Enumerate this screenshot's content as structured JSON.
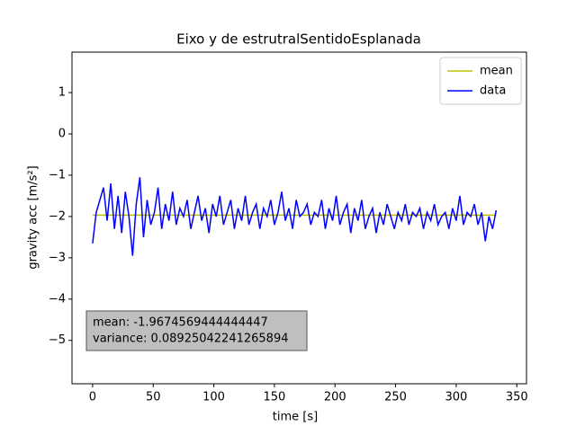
{
  "chart_data": {
    "type": "line",
    "title": "Eixo y de estrutralSentidoEsplanada",
    "x_label": "time [s]",
    "y_label": "gravity acc [m/s²]",
    "x": [
      0,
      3,
      6,
      9,
      12,
      15,
      18,
      21,
      24,
      27,
      30,
      33,
      36,
      39,
      42,
      45,
      48,
      51,
      54,
      57,
      60,
      63,
      66,
      69,
      72,
      75,
      78,
      81,
      84,
      87,
      90,
      93,
      96,
      99,
      102,
      105,
      108,
      111,
      114,
      117,
      120,
      123,
      126,
      129,
      132,
      135,
      138,
      141,
      144,
      147,
      150,
      153,
      156,
      159,
      162,
      165,
      168,
      171,
      174,
      177,
      180,
      183,
      186,
      189,
      192,
      195,
      198,
      201,
      204,
      207,
      210,
      213,
      216,
      219,
      222,
      225,
      228,
      231,
      234,
      237,
      240,
      243,
      246,
      249,
      252,
      255,
      258,
      261,
      264,
      267,
      270,
      273,
      276,
      279,
      282,
      285,
      288,
      291,
      294,
      297,
      300,
      303,
      306,
      309,
      312,
      315,
      318,
      321,
      324,
      327,
      330,
      333
    ],
    "series": [
      {
        "name": "mean",
        "color": "#bfbf00",
        "x": [
          0,
          333
        ],
        "values": [
          -1.9674569444444447,
          -1.9674569444444447
        ]
      },
      {
        "name": "data",
        "color": "#0000ff",
        "values": [
          -2.65,
          -1.9,
          -1.6,
          -1.3,
          -2.1,
          -1.2,
          -2.3,
          -1.5,
          -2.4,
          -1.4,
          -2.0,
          -2.95,
          -1.7,
          -1.05,
          -2.5,
          -1.6,
          -2.2,
          -1.9,
          -1.3,
          -2.3,
          -1.7,
          -2.1,
          -1.4,
          -2.2,
          -1.8,
          -2.0,
          -1.6,
          -2.3,
          -1.9,
          -1.5,
          -2.1,
          -1.8,
          -2.4,
          -1.7,
          -2.0,
          -1.5,
          -2.2,
          -1.9,
          -1.6,
          -2.3,
          -1.8,
          -2.1,
          -1.5,
          -2.2,
          -1.9,
          -1.7,
          -2.3,
          -1.8,
          -2.0,
          -1.6,
          -2.2,
          -1.9,
          -1.4,
          -2.1,
          -1.8,
          -2.3,
          -1.6,
          -2.0,
          -1.9,
          -1.7,
          -2.2,
          -1.9,
          -2.0,
          -1.6,
          -2.3,
          -1.8,
          -2.1,
          -1.5,
          -2.2,
          -1.9,
          -1.7,
          -2.4,
          -1.8,
          -2.1,
          -1.6,
          -2.3,
          -2.0,
          -1.8,
          -2.4,
          -1.9,
          -2.2,
          -1.7,
          -2.0,
          -2.3,
          -1.9,
          -2.1,
          -1.7,
          -2.2,
          -1.9,
          -2.0,
          -1.8,
          -2.3,
          -1.9,
          -2.1,
          -1.7,
          -2.2,
          -2.0,
          -1.9,
          -2.3,
          -1.8,
          -2.1,
          -1.5,
          -2.2,
          -1.9,
          -2.0,
          -1.7,
          -2.2,
          -1.9,
          -2.6,
          -2.0,
          -2.3,
          -1.85
        ]
      }
    ],
    "xlim": [
      -17,
      358
    ],
    "ylim": [
      -6.05,
      1.98
    ],
    "xticks": [
      0,
      50,
      100,
      150,
      200,
      250,
      300,
      350
    ],
    "yticks": [
      {
        "value": -5,
        "label": "−5"
      },
      {
        "value": -4,
        "label": "−4"
      },
      {
        "value": -3,
        "label": "−3"
      },
      {
        "value": -2,
        "label": "−2"
      },
      {
        "value": -1,
        "label": "−1"
      },
      0,
      1
    ],
    "legend": "upper right",
    "annotation": [
      "mean: -1.9674569444444447",
      "variance: 0.08925042241265894"
    ]
  }
}
